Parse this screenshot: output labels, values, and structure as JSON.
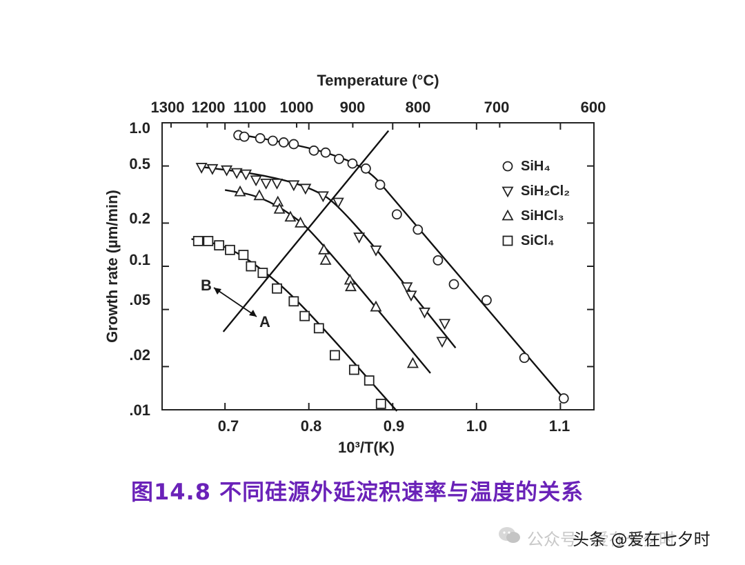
{
  "chart_data": {
    "type": "scatter",
    "top_axis": {
      "title": "Temperature (°C)",
      "ticks": [
        "1300",
        "1200",
        "1100",
        "1000",
        "900",
        "800",
        "700",
        "600"
      ]
    },
    "xlabel": "10³/T(K)",
    "ylabel": "Growth rate (µm/min)",
    "x_ticks": [
      "0.7",
      "0.8",
      "0.9",
      "1.0",
      "1.1"
    ],
    "y_ticks": [
      "1.0",
      "0.5",
      "0.2",
      "0.1",
      ".05",
      ".02",
      ".01"
    ],
    "xlim": [
      0.625,
      1.14
    ],
    "ylim": [
      0.01,
      1.0
    ],
    "yscale": "log",
    "grid": false,
    "legend_position": "top-right",
    "series": [
      {
        "name": "SiH₄",
        "marker": "circle",
        "points": [
          [
            0.716,
            0.82
          ],
          [
            0.723,
            0.8
          ],
          [
            0.742,
            0.78
          ],
          [
            0.757,
            0.75
          ],
          [
            0.77,
            0.73
          ],
          [
            0.782,
            0.71
          ],
          [
            0.806,
            0.64
          ],
          [
            0.82,
            0.62
          ],
          [
            0.836,
            0.56
          ],
          [
            0.852,
            0.52
          ],
          [
            0.868,
            0.48
          ],
          [
            0.885,
            0.37
          ],
          [
            0.905,
            0.23
          ],
          [
            0.93,
            0.18
          ],
          [
            0.954,
            0.11
          ],
          [
            0.973,
            0.075
          ],
          [
            1.012,
            0.058
          ],
          [
            1.057,
            0.023
          ],
          [
            1.104,
            0.012
          ]
        ],
        "fit": [
          [
            0.716,
            0.83
          ],
          [
            0.76,
            0.75
          ],
          [
            0.82,
            0.63
          ],
          [
            0.87,
            0.48
          ],
          [
            0.9,
            0.3
          ],
          [
            1.105,
            0.0118
          ]
        ]
      },
      {
        "name": "SiH₂Cl₂",
        "marker": "triangle-down",
        "points": [
          [
            0.672,
            0.49
          ],
          [
            0.685,
            0.48
          ],
          [
            0.702,
            0.47
          ],
          [
            0.714,
            0.45
          ],
          [
            0.725,
            0.44
          ],
          [
            0.737,
            0.4
          ],
          [
            0.749,
            0.38
          ],
          [
            0.762,
            0.38
          ],
          [
            0.782,
            0.37
          ],
          [
            0.796,
            0.35
          ],
          [
            0.817,
            0.31
          ],
          [
            0.835,
            0.28
          ],
          [
            0.86,
            0.16
          ],
          [
            0.88,
            0.13
          ],
          [
            0.917,
            0.072
          ],
          [
            0.922,
            0.063
          ],
          [
            0.938,
            0.048
          ],
          [
            0.959,
            0.03
          ],
          [
            0.962,
            0.04
          ]
        ],
        "fit": [
          [
            0.675,
            0.49
          ],
          [
            0.74,
            0.44
          ],
          [
            0.8,
            0.36
          ],
          [
            0.84,
            0.26
          ],
          [
            0.975,
            0.027
          ]
        ]
      },
      {
        "name": "SiHCl₃",
        "marker": "triangle-up",
        "points": [
          [
            0.718,
            0.33
          ],
          [
            0.741,
            0.31
          ],
          [
            0.763,
            0.28
          ],
          [
            0.765,
            0.25
          ],
          [
            0.778,
            0.22
          ],
          [
            0.79,
            0.2
          ],
          [
            0.818,
            0.13
          ],
          [
            0.82,
            0.11
          ],
          [
            0.849,
            0.08
          ],
          [
            0.85,
            0.072
          ],
          [
            0.88,
            0.052
          ],
          [
            0.924,
            0.021
          ]
        ],
        "fit": [
          [
            0.7,
            0.34
          ],
          [
            0.74,
            0.31
          ],
          [
            0.78,
            0.23
          ],
          [
            0.81,
            0.16
          ],
          [
            0.945,
            0.018
          ]
        ]
      },
      {
        "name": "SiCl₄",
        "marker": "square",
        "points": [
          [
            0.668,
            0.15
          ],
          [
            0.68,
            0.15
          ],
          [
            0.693,
            0.14
          ],
          [
            0.706,
            0.13
          ],
          [
            0.722,
            0.12
          ],
          [
            0.731,
            0.1
          ],
          [
            0.745,
            0.09
          ],
          [
            0.762,
            0.07
          ],
          [
            0.782,
            0.057
          ],
          [
            0.795,
            0.045
          ],
          [
            0.812,
            0.037
          ],
          [
            0.831,
            0.024
          ],
          [
            0.854,
            0.019
          ],
          [
            0.872,
            0.016
          ],
          [
            0.886,
            0.011
          ]
        ],
        "fit": [
          [
            0.66,
            0.155
          ],
          [
            0.7,
            0.14
          ],
          [
            0.74,
            0.1
          ],
          [
            0.79,
            0.056
          ],
          [
            0.905,
            0.0098
          ]
        ]
      }
    ],
    "annotations": {
      "line": [
        [
          0.698,
          0.035
        ],
        [
          0.895,
          0.88
        ]
      ],
      "label_b": "B",
      "label_a": "A"
    }
  },
  "caption": "图14.8 不同硅源外延淀积速率与温度的关系",
  "watermark": {
    "light_text": "公众号 · 爱在七夕时",
    "strong_text": "头条 @爱在七夕时"
  }
}
